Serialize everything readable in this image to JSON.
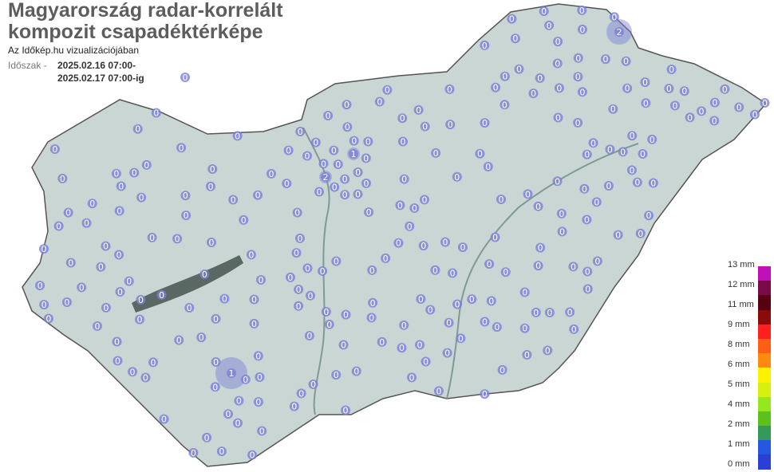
{
  "header": {
    "title_line1": "Magyarország radar-korrelált",
    "title_line2": "kompozit csapadéktérképe",
    "subtitle": "Az Időkép.hu vizualizációjában",
    "period_label": "Időszak -",
    "period_start": "2025.02.16 07:00-",
    "period_end": "2025.02.17 07:00-ig"
  },
  "legend": {
    "labels": [
      "13 mm",
      "12 mm",
      "11 mm",
      "9 mm",
      "8 mm",
      "6 mm",
      "5 mm",
      "4 mm",
      "2 mm",
      "1 mm",
      "0 mm"
    ],
    "colors": [
      "#c210b8",
      "#7a0a4a",
      "#560012",
      "#8c0a0a",
      "#ff1f1f",
      "#ff5f15",
      "#ff8a10",
      "#fff200",
      "#d8f010",
      "#95e81e",
      "#5cc01e",
      "#339a5a",
      "#2458e0",
      "#2a3fd6"
    ]
  },
  "map": {
    "land_color": "#c9d6d4",
    "lake_color": "#5a6864",
    "marker_color": "#7b7fd6",
    "highlight_stations": [
      {
        "value": "1",
        "label": "1"
      },
      {
        "value": "1",
        "label": "1"
      },
      {
        "value": "2",
        "label": "2"
      },
      {
        "value": "2",
        "label": "2"
      }
    ],
    "station_value": "0"
  }
}
